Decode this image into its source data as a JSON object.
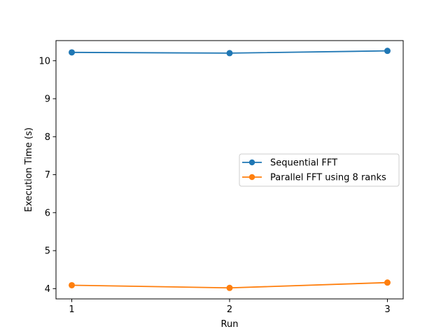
{
  "chart_data": {
    "type": "line",
    "title": "",
    "xlabel": "Run",
    "ylabel": "Execution Time (s)",
    "x": [
      1,
      2,
      3
    ],
    "xticks": [
      "1",
      "2",
      "3"
    ],
    "yticks": [
      "4",
      "5",
      "6",
      "7",
      "8",
      "9",
      "10"
    ],
    "xlim": [
      0.9,
      3.1
    ],
    "ylim": [
      3.73,
      10.53
    ],
    "grid": false,
    "legend_position": "center-right",
    "series": [
      {
        "name": "Sequential FFT",
        "color": "#1f77b4",
        "marker": "circle",
        "values": [
          10.22,
          10.2,
          10.26
        ]
      },
      {
        "name": "Parallel FFT using 8 ranks",
        "color": "#ff7f0e",
        "marker": "circle",
        "values": [
          4.09,
          4.02,
          4.16
        ]
      }
    ]
  }
}
